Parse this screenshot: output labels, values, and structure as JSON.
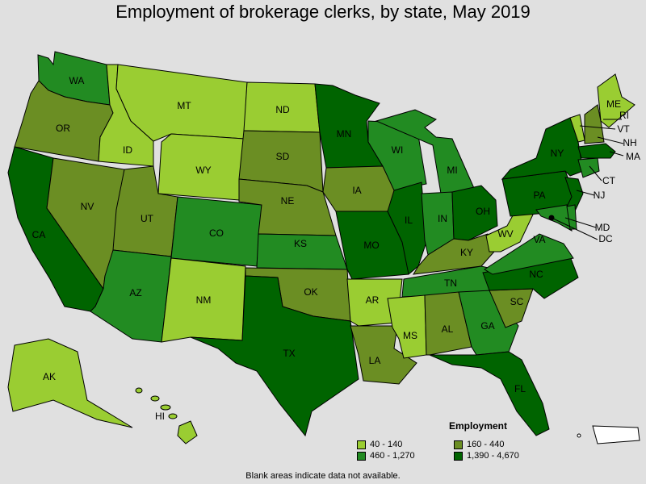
{
  "title": "Employment of brokerage clerks, by state, May 2019",
  "legend": {
    "title": "Employment",
    "classes": [
      {
        "label": "40 - 140",
        "color": "#9acd32"
      },
      {
        "label": "160 - 440",
        "color": "#6b8e23"
      },
      {
        "label": "460 - 1,270",
        "color": "#228b22"
      },
      {
        "label": "1,390 - 4,670",
        "color": "#006400"
      }
    ]
  },
  "note": "Blank areas indicate data not available.",
  "states": {
    "WA": 2,
    "OR": 1,
    "CA": 3,
    "ID": 0,
    "NV": 1,
    "MT": 0,
    "WY": 0,
    "UT": 1,
    "AZ": 2,
    "CO": 2,
    "NM": 0,
    "ND": 0,
    "SD": 1,
    "NE": 1,
    "KS": 2,
    "OK": 1,
    "TX": 3,
    "MN": 3,
    "IA": 1,
    "MO": 3,
    "AR": 0,
    "LA": 1,
    "WI": 2,
    "IL": 3,
    "MI": 2,
    "IN": 2,
    "OH": 3,
    "KY": 1,
    "TN": 2,
    "MS": 0,
    "AL": 1,
    "GA": 2,
    "FL": 3,
    "SC": 1,
    "NC": 3,
    "VA": 2,
    "WV": 0,
    "PA": 3,
    "NY": 3,
    "ME": 0,
    "VT": 0,
    "NH": 1,
    "MA": 3,
    "CT": 2,
    "NJ": 3,
    "MD": 2,
    "DE": 2,
    "DC": 3,
    "AK": 0,
    "HI": 0
  },
  "labels": [
    "WA",
    "OR",
    "CA",
    "ID",
    "NV",
    "MT",
    "WY",
    "UT",
    "AZ",
    "CO",
    "NM",
    "ND",
    "SD",
    "NE",
    "KS",
    "OK",
    "TX",
    "MN",
    "IA",
    "MO",
    "AR",
    "LA",
    "WI",
    "IL",
    "MI",
    "IN",
    "OH",
    "KY",
    "TN",
    "MS",
    "AL",
    "GA",
    "FL",
    "SC",
    "NC",
    "VA",
    "WV",
    "PA",
    "NY",
    "ME",
    "VT",
    "NH",
    "MA",
    "CT",
    "NJ",
    "MD",
    "DC",
    "RI",
    "AK",
    "HI"
  ]
}
